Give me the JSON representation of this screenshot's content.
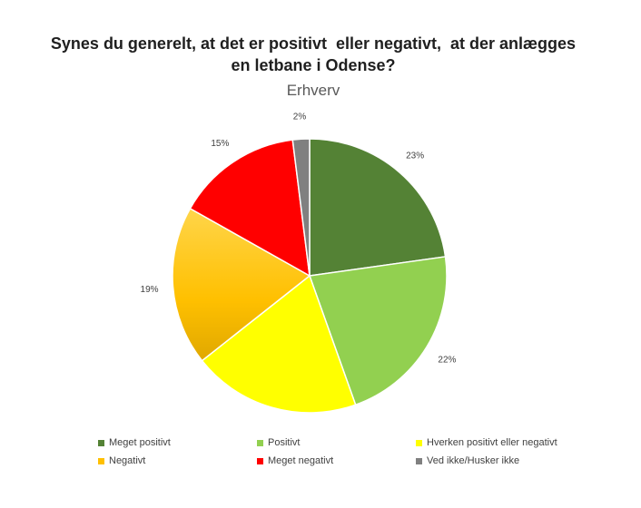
{
  "chart_data": {
    "type": "pie",
    "title": "Synes du generelt, at det er positivt eller negativt, at der anlægges en letbane i Odense?",
    "subtitle": "Erhverv",
    "legend_position": "bottom",
    "slices": [
      {
        "name": "Meget positivt",
        "value": 23,
        "label": "23%",
        "color": "#548235"
      },
      {
        "name": "Positivt",
        "value": 22,
        "label": "22%",
        "color": "#92d050"
      },
      {
        "name": "Hverken positivt eller negativt",
        "value": 20,
        "label": "20%",
        "color": "#ffff00"
      },
      {
        "name": "Negativt",
        "value": 19,
        "label": "19%",
        "color": "#ffc000"
      },
      {
        "name": "Meget negativt",
        "value": 15,
        "label": "15%",
        "color": "#ff0000"
      },
      {
        "name": "Ved ikke/Husker ikke",
        "value": 2,
        "label": "2%",
        "color": "#808080"
      }
    ]
  }
}
